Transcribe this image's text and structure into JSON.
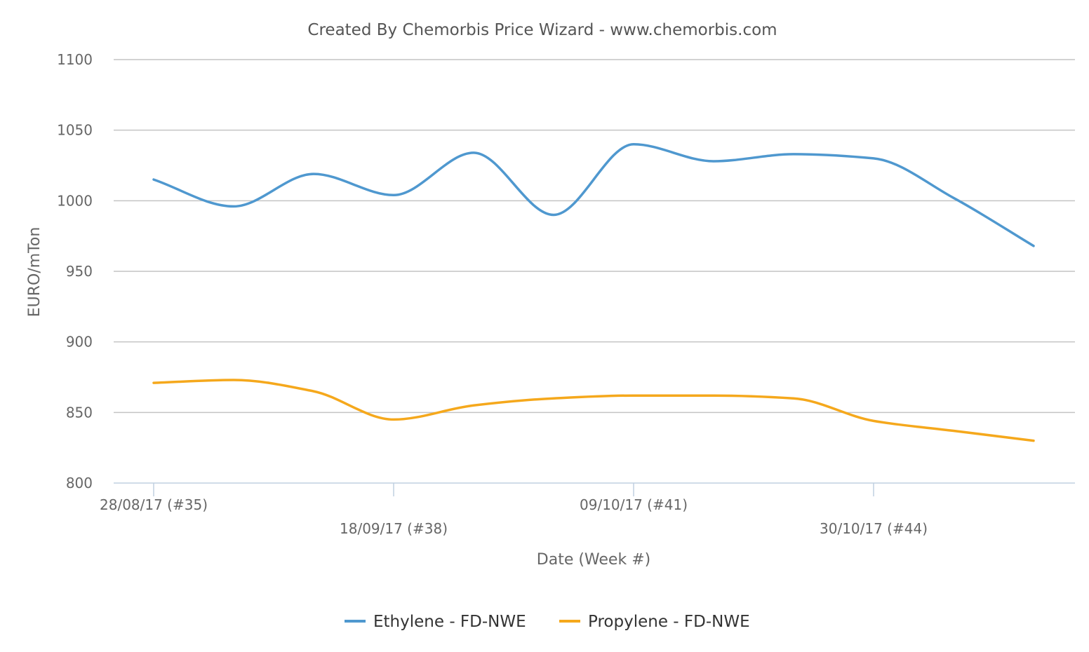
{
  "chart_data": {
    "type": "line",
    "title": "Created By Chemorbis Price Wizard - www.chemorbis.com",
    "xlabel": "Date (Week #)",
    "ylabel": "EURO/mTon",
    "ylim": [
      800,
      1100
    ],
    "yticks": [
      800,
      850,
      900,
      950,
      1000,
      1050,
      1100
    ],
    "xticks": [
      "28/08/17 (#35)",
      "18/09/17 (#38)",
      "09/10/17 (#41)",
      "30/10/17 (#44)"
    ],
    "x": [
      "28/08/17",
      "04/09/17",
      "11/09/17",
      "18/09/17",
      "25/09/17",
      "02/10/17",
      "09/10/17",
      "16/10/17",
      "23/10/17",
      "30/10/17",
      "06/11/17",
      "13/11/17"
    ],
    "grid": true,
    "legend_position": "bottom",
    "series": [
      {
        "name": "Ethylene - FD-NWE",
        "color": "#4f98cf",
        "values": [
          1015,
          996,
          1019,
          1004,
          1034,
          990,
          1040,
          1028,
          1033,
          1030,
          1002,
          968
        ]
      },
      {
        "name": "Propylene - FD-NWE",
        "color": "#f5a81c",
        "values": [
          871,
          873,
          865,
          845,
          855,
          860,
          862,
          862,
          860,
          844,
          837,
          830
        ]
      }
    ]
  }
}
